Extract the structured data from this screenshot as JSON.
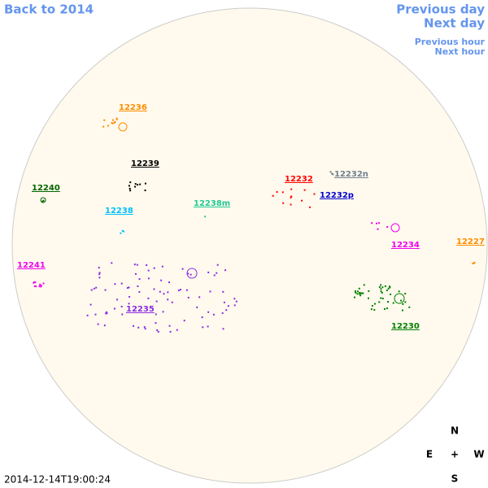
{
  "nav": {
    "back": "Back to 2014",
    "previous_day": "Previous day",
    "next_day": "Next day",
    "previous_hour": "Previous hour",
    "next_hour": "Next hour"
  },
  "regions": [
    {
      "label": "12236",
      "color": "#ff8c00"
    },
    {
      "label": "12239",
      "color": "#000000"
    },
    {
      "label": "12240",
      "color": "#006400"
    },
    {
      "label": "12238",
      "color": "#00bfff"
    },
    {
      "label": "12238m",
      "color": "#20c997"
    },
    {
      "label": "12232",
      "color": "#ff0000"
    },
    {
      "label": "12232n",
      "color": "#708090"
    },
    {
      "label": "12232p",
      "color": "#0000cd"
    },
    {
      "label": "12234",
      "color": "#ee00ee"
    },
    {
      "label": "12227",
      "color": "#ff8c00"
    },
    {
      "label": "12241",
      "color": "#ee00ee"
    },
    {
      "label": "12235",
      "color": "#8a2be2"
    },
    {
      "label": "12230",
      "color": "#008000"
    }
  ],
  "timestamp": "2014-12-14T19:00:24",
  "compass": {
    "north": "N",
    "east": "E",
    "center": "+",
    "west": "W",
    "south": "S"
  }
}
